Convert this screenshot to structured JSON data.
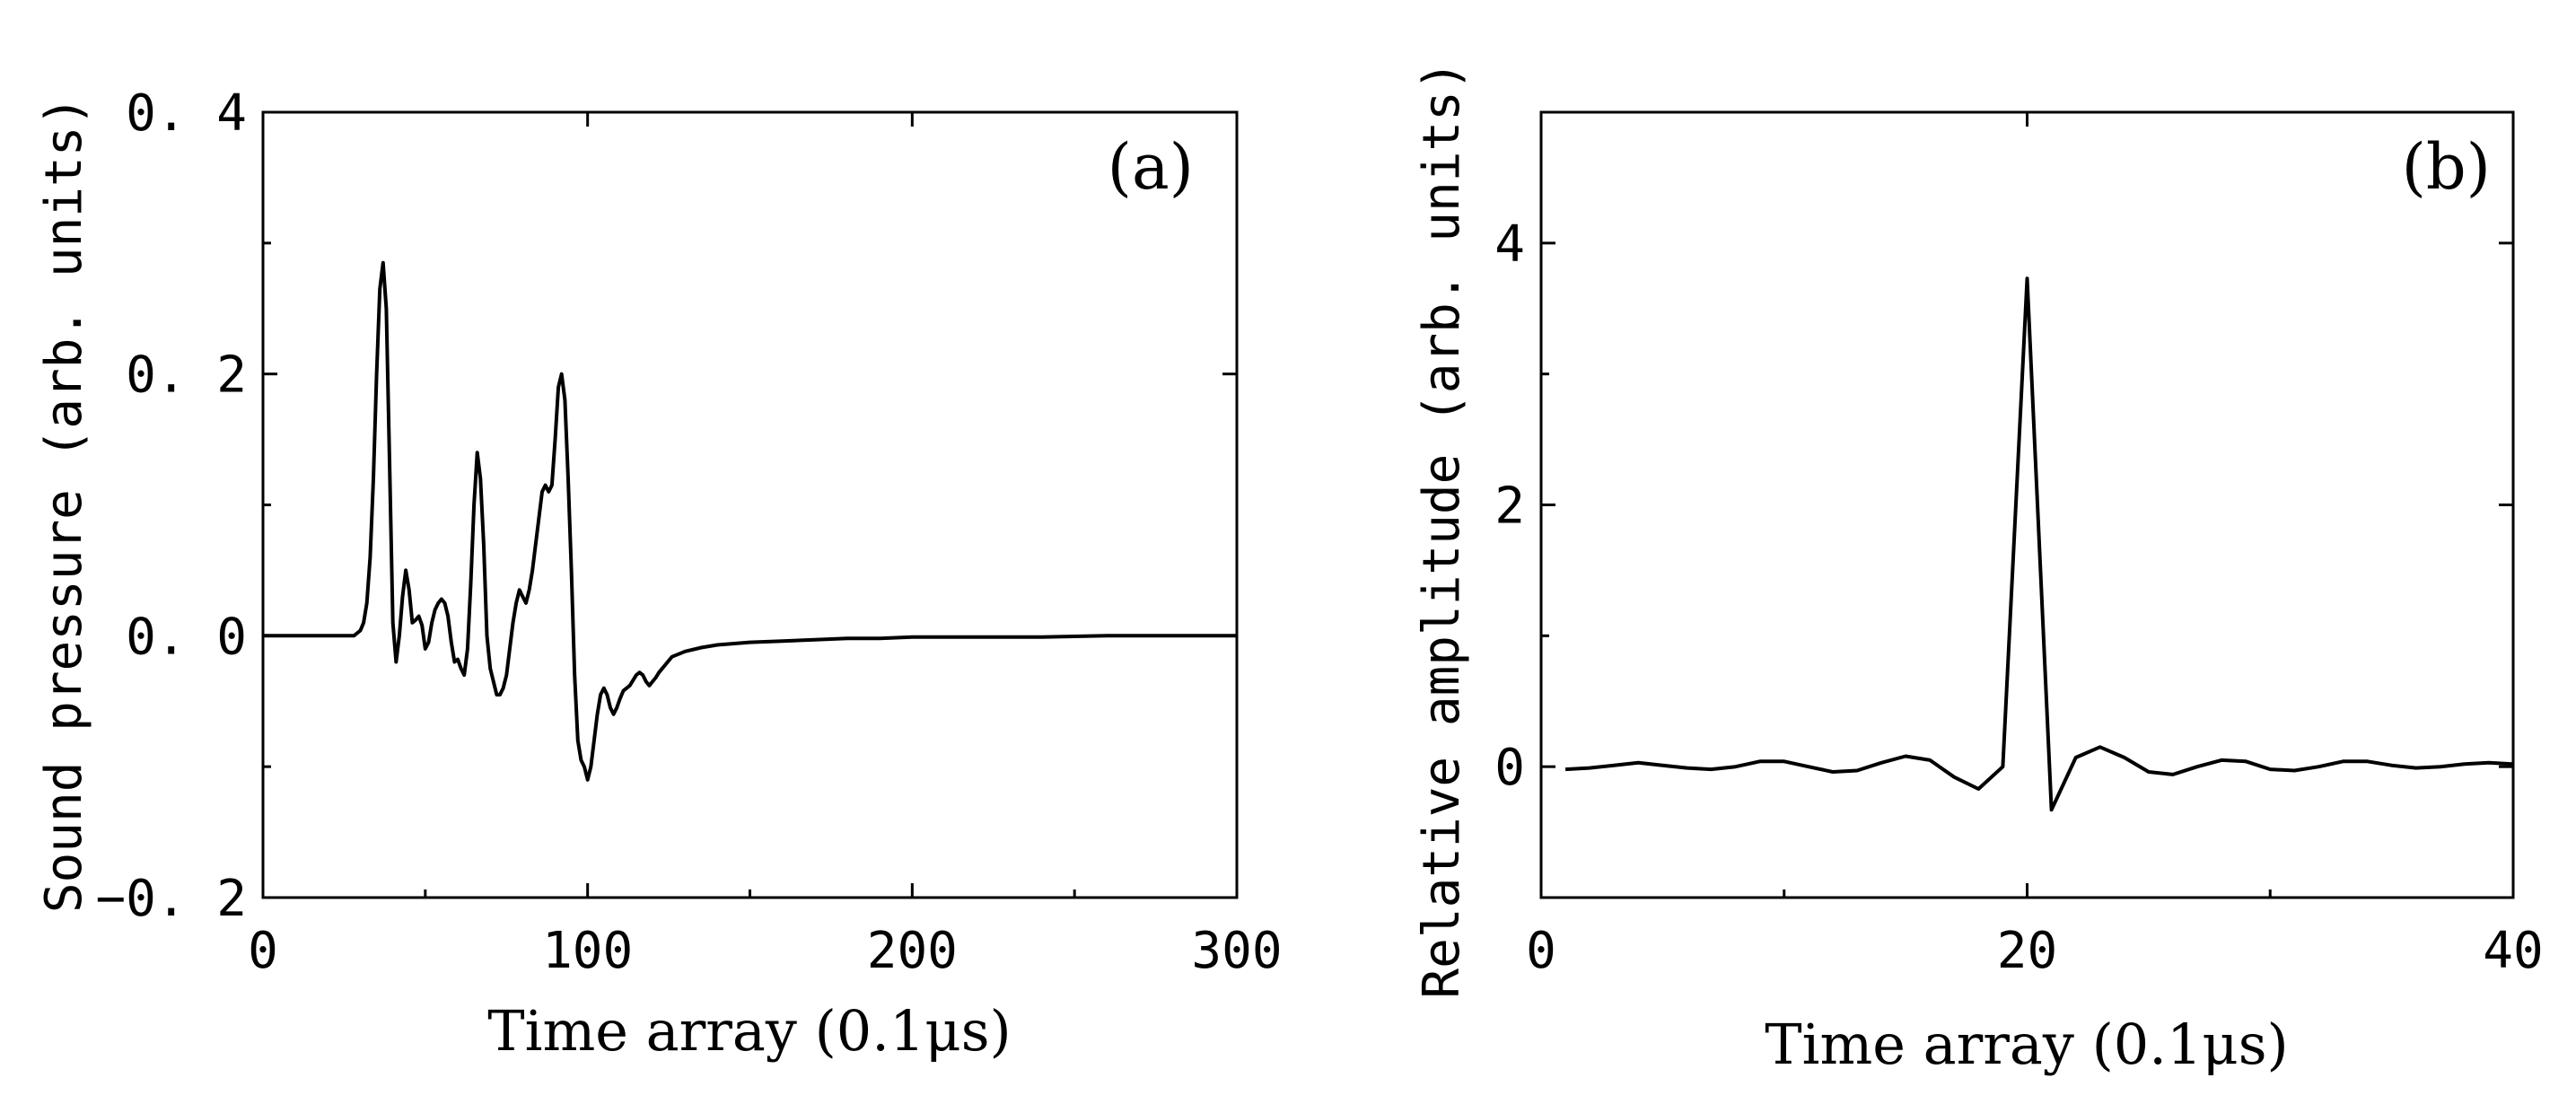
{
  "chart_data": [
    {
      "type": "line",
      "panel_label": "(a)",
      "xlabel": "Time array (0.1μs)",
      "ylabel": "Sound pressure (arb. units)",
      "xlim": [
        0,
        300
      ],
      "ylim": [
        -0.2,
        0.4
      ],
      "xticks": [
        0,
        100,
        200,
        300
      ],
      "xtick_labels": [
        "0",
        "100",
        "200",
        "300"
      ],
      "yticks": [
        -0.2,
        0.0,
        0.2,
        0.4
      ],
      "ytick_labels": [
        "−0. 2",
        "0. 0",
        "0. 2",
        "0. 4"
      ],
      "series": [
        {
          "name": "sound pressure",
          "x": [
            0,
            10,
            20,
            28,
            30,
            31,
            32,
            33,
            34,
            35,
            36,
            37,
            38,
            39,
            40,
            41,
            42,
            43,
            44,
            45,
            46,
            47,
            48,
            49,
            50,
            51,
            52,
            53,
            54,
            55,
            56,
            57,
            58,
            59,
            60,
            61,
            62,
            63,
            64,
            65,
            66,
            67,
            68,
            69,
            70,
            71,
            72,
            73,
            74,
            75,
            76,
            77,
            78,
            79,
            80,
            81,
            82,
            83,
            84,
            85,
            86,
            87,
            88,
            89,
            90,
            91,
            92,
            93,
            94,
            95,
            96,
            97,
            98,
            99,
            100,
            101,
            102,
            103,
            104,
            105,
            106,
            107,
            108,
            109,
            110,
            111,
            112,
            113,
            114,
            115,
            116,
            117,
            118,
            119,
            120,
            121,
            122,
            123,
            124,
            125,
            126,
            128,
            130,
            135,
            140,
            150,
            160,
            170,
            180,
            190,
            200,
            220,
            240,
            260,
            280,
            300
          ],
          "values": [
            0,
            0,
            0,
            0,
            0.004,
            0.01,
            0.025,
            0.06,
            0.12,
            0.2,
            0.265,
            0.285,
            0.25,
            0.13,
            0.01,
            -0.02,
            0.0,
            0.03,
            0.05,
            0.035,
            0.01,
            0.012,
            0.015,
            0.008,
            -0.01,
            -0.005,
            0.01,
            0.02,
            0.025,
            0.028,
            0.025,
            0.015,
            -0.005,
            -0.02,
            -0.018,
            -0.025,
            -0.03,
            -0.01,
            0.04,
            0.1,
            0.14,
            0.12,
            0.07,
            0.0,
            -0.025,
            -0.035,
            -0.045,
            -0.045,
            -0.04,
            -0.03,
            -0.01,
            0.01,
            0.025,
            0.035,
            0.03,
            0.025,
            0.035,
            0.05,
            0.07,
            0.09,
            0.11,
            0.115,
            0.11,
            0.115,
            0.15,
            0.19,
            0.2,
            0.18,
            0.12,
            0.05,
            -0.03,
            -0.08,
            -0.095,
            -0.1,
            -0.11,
            -0.1,
            -0.08,
            -0.06,
            -0.045,
            -0.04,
            -0.045,
            -0.055,
            -0.06,
            -0.055,
            -0.048,
            -0.042,
            -0.04,
            -0.038,
            -0.034,
            -0.03,
            -0.028,
            -0.03,
            -0.035,
            -0.038,
            -0.035,
            -0.032,
            -0.028,
            -0.025,
            -0.022,
            -0.019,
            -0.016,
            -0.014,
            -0.012,
            -0.009,
            -0.007,
            -0.005,
            -0.004,
            -0.003,
            -0.002,
            -0.002,
            -0.001,
            -0.001,
            -0.001,
            0,
            0,
            0
          ]
        }
      ]
    },
    {
      "type": "line",
      "panel_label": "(b)",
      "xlabel": "Time array (0.1μs)",
      "ylabel": "Relative amplitude (arb. units)",
      "xlim": [
        0,
        40
      ],
      "ylim": [
        -1,
        5
      ],
      "xticks": [
        0,
        20,
        40
      ],
      "xtick_labels": [
        "0",
        "20",
        "40"
      ],
      "yticks": [
        0,
        2,
        4
      ],
      "ytick_labels": [
        "0",
        "2",
        "4"
      ],
      "series": [
        {
          "name": "relative amplitude",
          "x": [
            1,
            2,
            3,
            4,
            5,
            6,
            7,
            8,
            9,
            10,
            11,
            12,
            13,
            14,
            15,
            16,
            17,
            18,
            19,
            20,
            21,
            22,
            23,
            24,
            25,
            26,
            27,
            28,
            29,
            30,
            31,
            32,
            33,
            34,
            35,
            36,
            37,
            38,
            39,
            40
          ],
          "values": [
            -0.02,
            -0.01,
            0.01,
            0.03,
            0.01,
            -0.01,
            -0.02,
            0.0,
            0.04,
            0.04,
            0.0,
            -0.04,
            -0.03,
            0.03,
            0.08,
            0.05,
            -0.08,
            -0.17,
            0.0,
            3.73,
            -0.33,
            0.07,
            0.15,
            0.07,
            -0.04,
            -0.06,
            0.0,
            0.05,
            0.04,
            -0.02,
            -0.03,
            0.0,
            0.04,
            0.04,
            0.01,
            -0.01,
            0.0,
            0.02,
            0.03,
            0.02
          ]
        }
      ]
    }
  ]
}
